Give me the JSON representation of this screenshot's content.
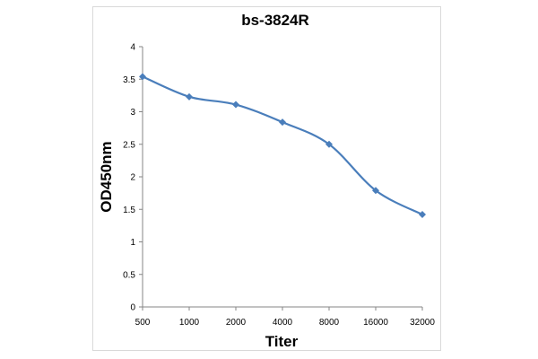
{
  "chart_data": {
    "type": "line",
    "title": "bs-3824R",
    "xlabel": "Titer",
    "ylabel": "OD450nm",
    "categories": [
      "500",
      "1000",
      "2000",
      "4000",
      "8000",
      "16000",
      "32000"
    ],
    "series": [
      {
        "values": [
          3.54,
          3.23,
          3.11,
          2.84,
          2.5,
          1.79,
          1.42
        ]
      }
    ],
    "ylim": [
      0,
      4
    ],
    "yticks": [
      0,
      0.5,
      1,
      1.5,
      2,
      2.5,
      3,
      3.5,
      4
    ],
    "ytick_labels": [
      "0",
      "0.5",
      "1",
      "1.5",
      "2",
      "2.5",
      "3",
      "3.5",
      "4"
    ],
    "grid": false,
    "legend": "none",
    "line_color": "#4a7ebb",
    "marker": "diamond",
    "smooth": true
  }
}
